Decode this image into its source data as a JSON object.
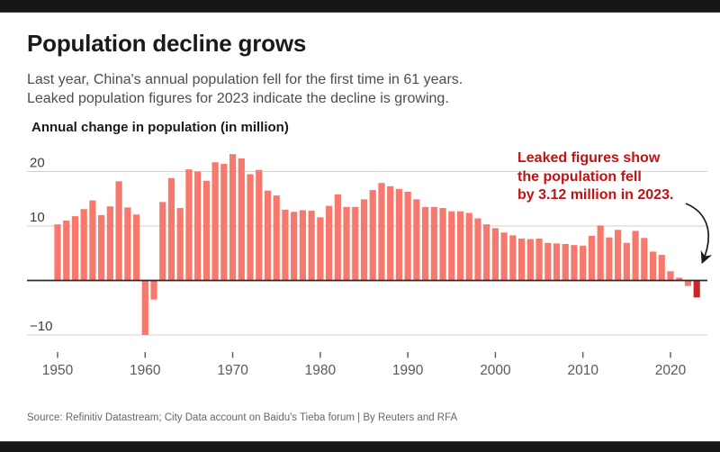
{
  "header": {
    "title": "Population decline grows",
    "subtitle_line1": "Last year, China's annual population fell for the first time in 61 years.",
    "subtitle_line2": "Leaked population figures for 2023 indicate the decline is growing."
  },
  "chart_data": {
    "type": "bar",
    "title": "Annual change in population (in million)",
    "xlabel": "",
    "ylabel": "Annual change in population (in million)",
    "ylim": [
      -13,
      25
    ],
    "grid": "horizontal",
    "legend": "none",
    "bar_color": "#F7796D",
    "highlight_year": 2023,
    "highlight_color": "#D42422",
    "y_ticks": [
      {
        "value": 20,
        "label": "20"
      },
      {
        "value": 10,
        "label": "10"
      },
      {
        "value": -10,
        "label": "−10"
      }
    ],
    "x_ticks": [
      {
        "year": 1950,
        "label": "1950"
      },
      {
        "year": 1960,
        "label": "1960"
      },
      {
        "year": 1970,
        "label": "1970"
      },
      {
        "year": 1980,
        "label": "1980"
      },
      {
        "year": 1990,
        "label": "1990"
      },
      {
        "year": 2000,
        "label": "2000"
      },
      {
        "year": 2010,
        "label": "2010"
      },
      {
        "year": 2020,
        "label": "2020"
      }
    ],
    "years": [
      1950,
      1951,
      1952,
      1953,
      1954,
      1955,
      1956,
      1957,
      1958,
      1959,
      1960,
      1961,
      1962,
      1963,
      1964,
      1965,
      1966,
      1967,
      1968,
      1969,
      1970,
      1971,
      1972,
      1973,
      1974,
      1975,
      1976,
      1977,
      1978,
      1979,
      1980,
      1981,
      1982,
      1983,
      1984,
      1985,
      1986,
      1987,
      1988,
      1989,
      1990,
      1991,
      1992,
      1993,
      1994,
      1995,
      1996,
      1997,
      1998,
      1999,
      2000,
      2001,
      2002,
      2003,
      2004,
      2005,
      2006,
      2007,
      2008,
      2009,
      2010,
      2011,
      2012,
      2013,
      2014,
      2015,
      2016,
      2017,
      2018,
      2019,
      2020,
      2021,
      2022,
      2023
    ],
    "values": [
      10.3,
      11.0,
      11.8,
      13.1,
      14.7,
      12.0,
      13.6,
      18.2,
      13.4,
      12.1,
      -10.0,
      -3.5,
      14.4,
      18.8,
      13.3,
      20.4,
      20.0,
      18.3,
      21.7,
      21.4,
      23.2,
      22.4,
      19.5,
      20.3,
      16.5,
      15.6,
      13.0,
      12.6,
      12.9,
      12.8,
      11.6,
      13.7,
      15.8,
      13.5,
      13.5,
      14.9,
      16.6,
      17.9,
      17.3,
      16.8,
      16.3,
      14.9,
      13.5,
      13.5,
      13.3,
      12.7,
      12.7,
      12.4,
      11.4,
      10.3,
      9.6,
      8.8,
      8.3,
      7.7,
      7.6,
      7.7,
      6.9,
      6.8,
      6.7,
      6.5,
      6.4,
      8.2,
      10.1,
      7.9,
      9.3,
      6.9,
      9.1,
      7.8,
      5.3,
      4.7,
      1.7,
      0.5,
      -1.0,
      -3.12
    ],
    "annotation": {
      "lines": [
        "Leaked figures show",
        "the population fell",
        "by 3.12 million in 2023."
      ],
      "color": "#C21212"
    }
  },
  "footer": {
    "source": "Source: Refinitiv Datastream; City Data account on Baidu's Tieba forum  |  By Reuters and RFA"
  }
}
